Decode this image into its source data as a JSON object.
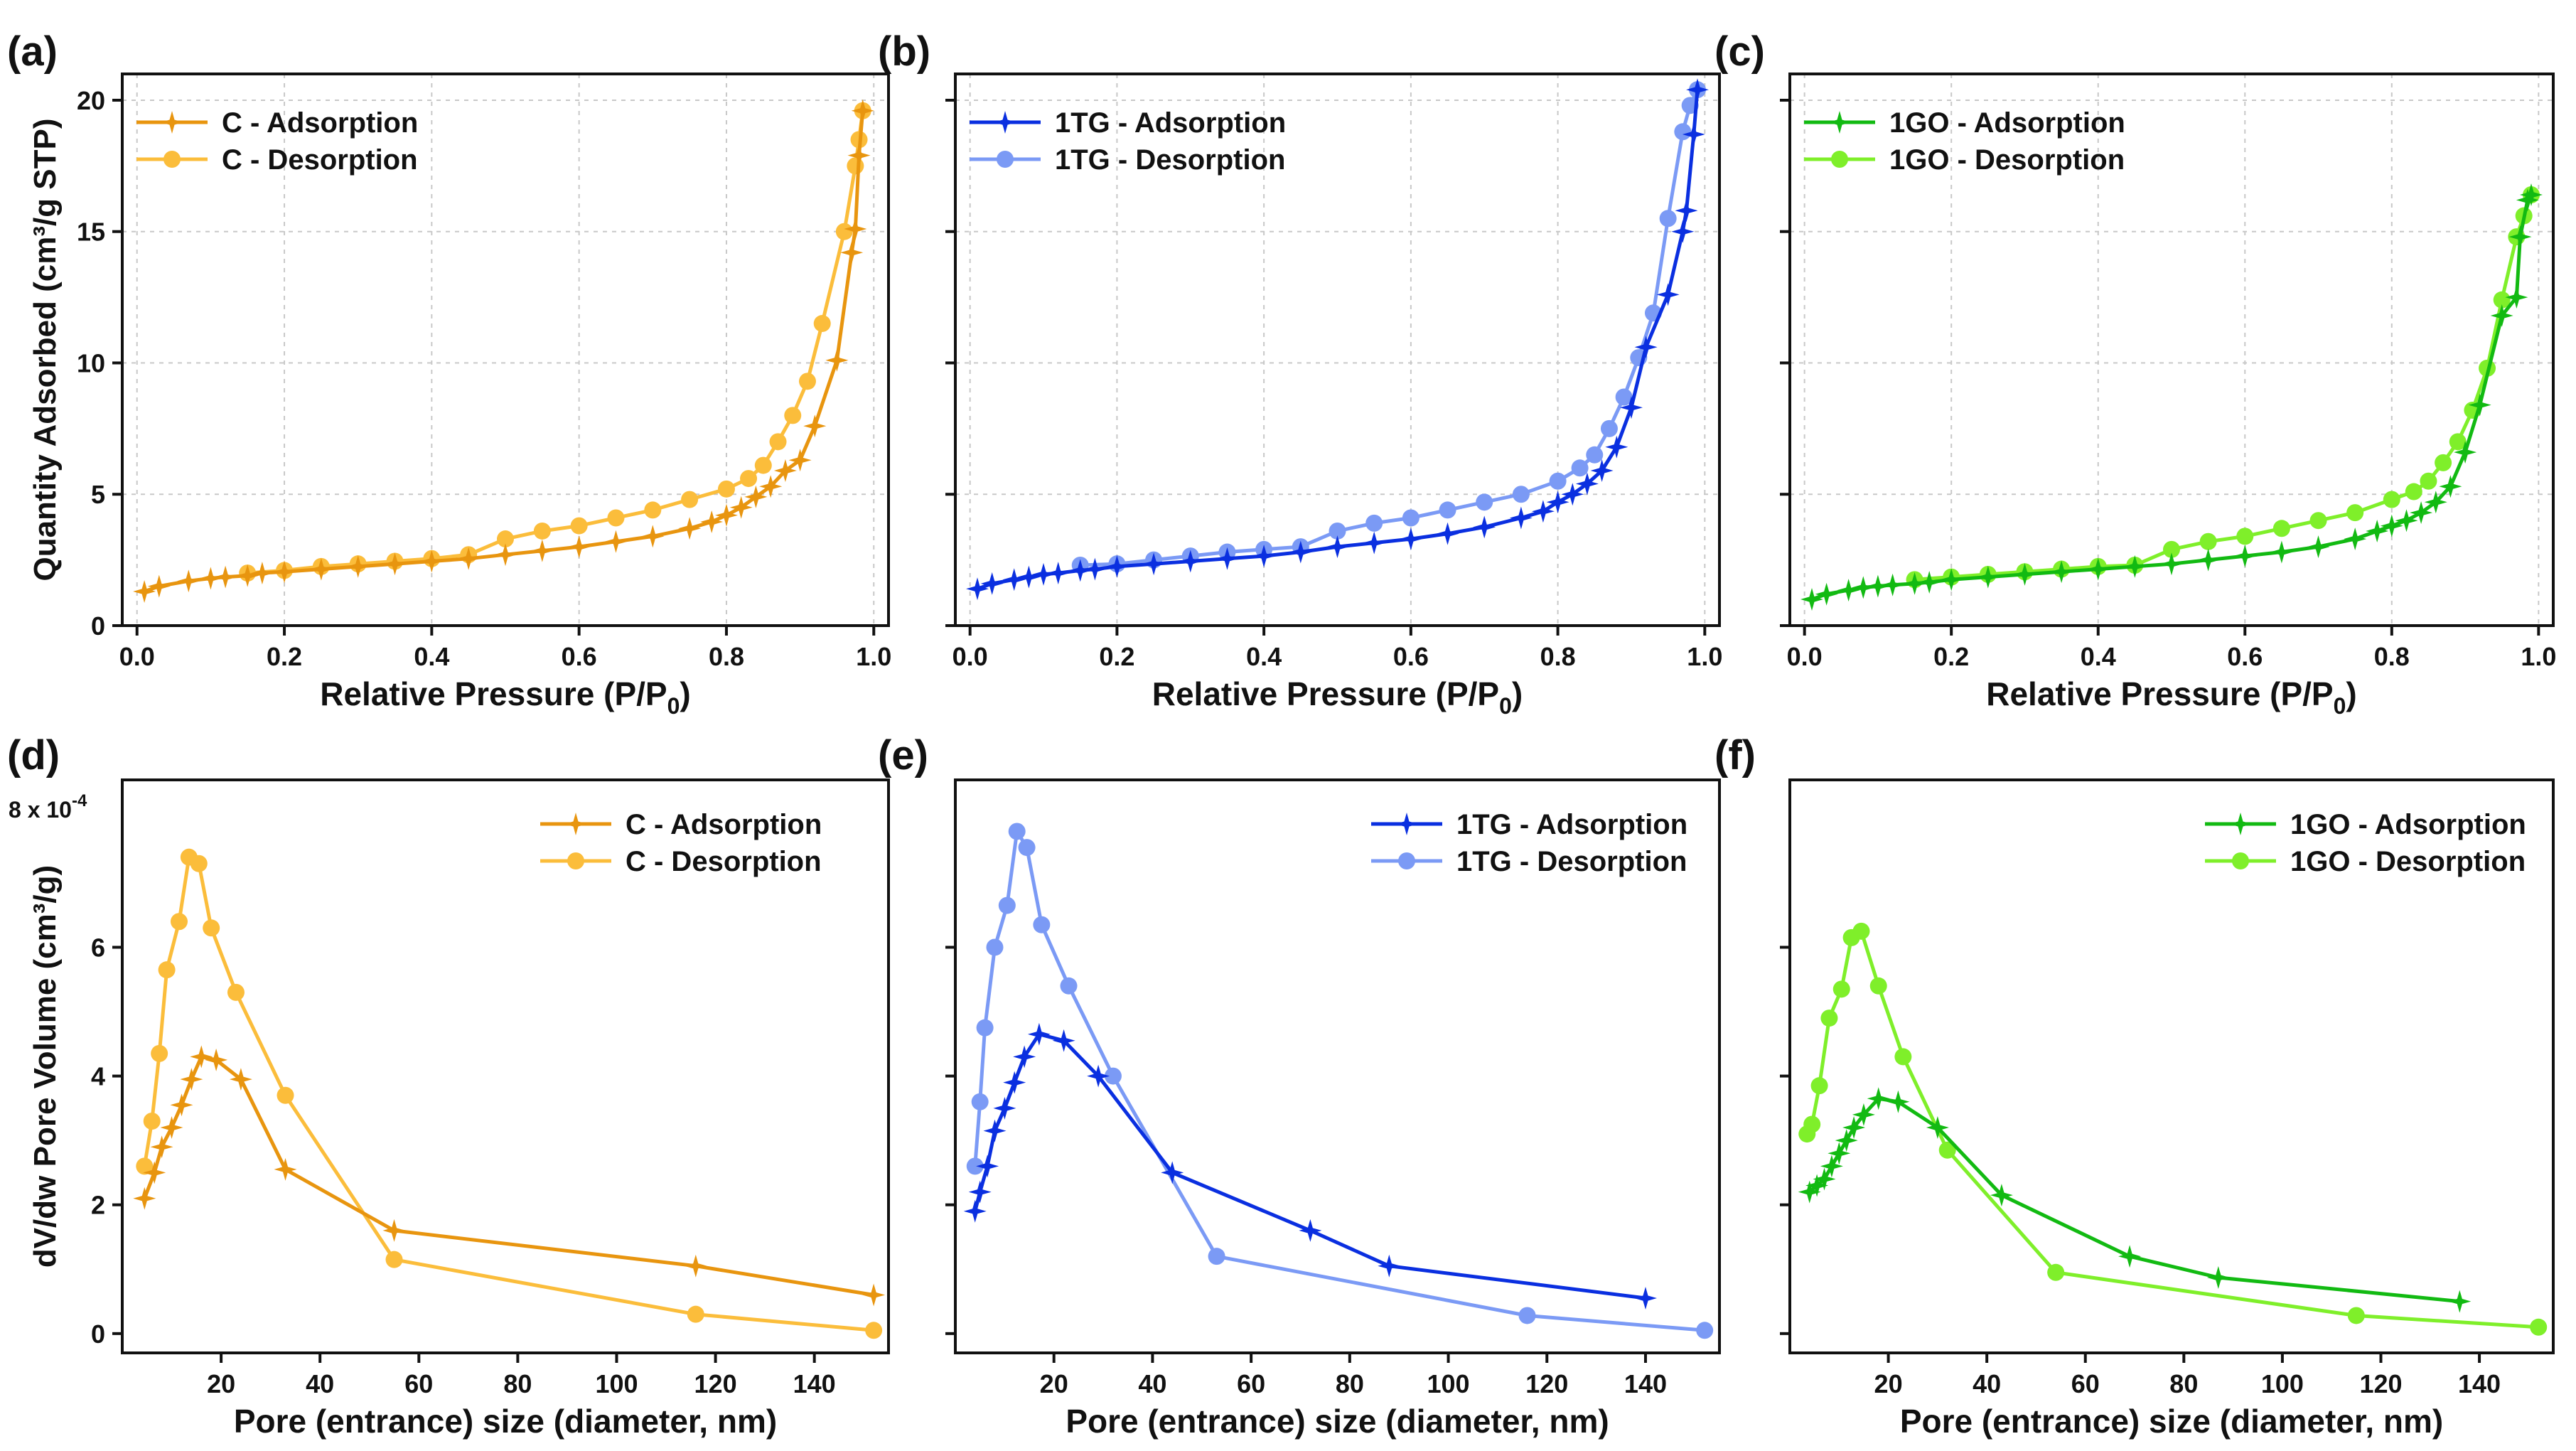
{
  "colors": {
    "C": {
      "ads": "#E8950F",
      "des": "#FBBD3B"
    },
    "1TG": {
      "ads": "#0A2FE0",
      "des": "#7B9AF5"
    },
    "1GO": {
      "ads": "#12BA12",
      "des": "#7FEF2A"
    }
  },
  "chart_data": [
    {
      "id": "a",
      "type": "line",
      "panel_label": "(a)",
      "xlabel_main": "Relative Pressure (P/P",
      "xlabel_sub": "0",
      "xlabel_end": ")",
      "ylabel": "Quantity Adsorbed (cm³/g STP)",
      "xlim": [
        -0.02,
        1.02
      ],
      "ylim": [
        0,
        21
      ],
      "xticks": [
        0.0,
        0.2,
        0.4,
        0.6,
        0.8,
        1.0
      ],
      "xtick_labels": [
        "0.0",
        "0.2",
        "0.4",
        "0.6",
        "0.8",
        "1.0"
      ],
      "yticks": [
        0,
        5,
        10,
        15,
        20
      ],
      "ytick_labels": [
        "0",
        "5",
        "10",
        "15",
        "20"
      ],
      "grid": true,
      "legend_position": "top-left",
      "series": [
        {
          "name": "C - Adsorption",
          "marker": "star",
          "color_key": "C",
          "variant": "ads",
          "x": [
            0.01,
            0.03,
            0.07,
            0.1,
            0.12,
            0.15,
            0.17,
            0.2,
            0.25,
            0.3,
            0.35,
            0.4,
            0.45,
            0.5,
            0.55,
            0.6,
            0.65,
            0.7,
            0.75,
            0.78,
            0.8,
            0.82,
            0.84,
            0.86,
            0.88,
            0.9,
            0.92,
            0.95,
            0.97,
            0.975,
            0.98,
            0.985
          ],
          "y": [
            1.3,
            1.5,
            1.7,
            1.8,
            1.85,
            1.9,
            2.0,
            2.05,
            2.15,
            2.25,
            2.35,
            2.45,
            2.55,
            2.7,
            2.85,
            3.0,
            3.2,
            3.4,
            3.7,
            3.95,
            4.2,
            4.5,
            4.9,
            5.3,
            5.9,
            6.3,
            7.6,
            10.1,
            14.2,
            15.1,
            17.9,
            19.6
          ]
        },
        {
          "name": "C - Desorption",
          "marker": "circle",
          "color_key": "C",
          "variant": "des",
          "x": [
            0.985,
            0.98,
            0.975,
            0.96,
            0.93,
            0.91,
            0.89,
            0.87,
            0.85,
            0.83,
            0.8,
            0.75,
            0.7,
            0.65,
            0.6,
            0.55,
            0.5,
            0.45,
            0.4,
            0.35,
            0.3,
            0.25,
            0.2,
            0.15
          ],
          "y": [
            19.6,
            18.5,
            17.5,
            15.0,
            11.5,
            9.3,
            8.0,
            7.0,
            6.1,
            5.6,
            5.2,
            4.8,
            4.4,
            4.1,
            3.8,
            3.6,
            3.3,
            2.7,
            2.55,
            2.45,
            2.35,
            2.25,
            2.1,
            2.0
          ]
        }
      ]
    },
    {
      "id": "b",
      "type": "line",
      "panel_label": "(b)",
      "xlabel_main": "Relative Pressure (P/P",
      "xlabel_sub": "0",
      "xlabel_end": ")",
      "ylabel": "",
      "xlim": [
        -0.02,
        1.02
      ],
      "ylim": [
        0,
        21
      ],
      "xticks": [
        0.0,
        0.2,
        0.4,
        0.6,
        0.8,
        1.0
      ],
      "xtick_labels": [
        "0.0",
        "0.2",
        "0.4",
        "0.6",
        "0.8",
        "1.0"
      ],
      "yticks": [
        0,
        5,
        10,
        15,
        20
      ],
      "ytick_labels": [],
      "grid": true,
      "legend_position": "top-left",
      "series": [
        {
          "name": "1TG - Adsorption",
          "marker": "star",
          "color_key": "1TG",
          "variant": "ads",
          "x": [
            0.01,
            0.03,
            0.06,
            0.08,
            0.1,
            0.12,
            0.15,
            0.17,
            0.2,
            0.25,
            0.3,
            0.35,
            0.4,
            0.45,
            0.5,
            0.55,
            0.6,
            0.65,
            0.7,
            0.75,
            0.78,
            0.8,
            0.82,
            0.84,
            0.86,
            0.88,
            0.9,
            0.92,
            0.95,
            0.97,
            0.975,
            0.985,
            0.99
          ],
          "y": [
            1.4,
            1.6,
            1.75,
            1.85,
            1.95,
            2.0,
            2.1,
            2.15,
            2.25,
            2.35,
            2.45,
            2.55,
            2.65,
            2.8,
            3.0,
            3.15,
            3.3,
            3.5,
            3.75,
            4.1,
            4.35,
            4.7,
            5.0,
            5.4,
            5.9,
            6.8,
            8.3,
            10.6,
            12.6,
            15.0,
            15.8,
            18.7,
            20.4
          ]
        },
        {
          "name": "1TG - Desorption",
          "marker": "circle",
          "color_key": "1TG",
          "variant": "des",
          "x": [
            0.99,
            0.98,
            0.97,
            0.95,
            0.93,
            0.91,
            0.89,
            0.87,
            0.85,
            0.83,
            0.8,
            0.75,
            0.7,
            0.65,
            0.6,
            0.55,
            0.5,
            0.45,
            0.4,
            0.35,
            0.3,
            0.25,
            0.2,
            0.15
          ],
          "y": [
            20.4,
            19.8,
            18.8,
            15.5,
            11.9,
            10.2,
            8.7,
            7.5,
            6.5,
            6.0,
            5.5,
            5.0,
            4.7,
            4.4,
            4.1,
            3.9,
            3.6,
            3.0,
            2.9,
            2.8,
            2.65,
            2.5,
            2.35,
            2.3
          ]
        }
      ]
    },
    {
      "id": "c",
      "type": "line",
      "panel_label": "(c)",
      "xlabel_main": "Relative Pressure (P/P",
      "xlabel_sub": "0",
      "xlabel_end": ")",
      "ylabel": "",
      "xlim": [
        -0.02,
        1.02
      ],
      "ylim": [
        0,
        21
      ],
      "xticks": [
        0.0,
        0.2,
        0.4,
        0.6,
        0.8,
        1.0
      ],
      "xtick_labels": [
        "0.0",
        "0.2",
        "0.4",
        "0.6",
        "0.8",
        "1.0"
      ],
      "yticks": [
        0,
        5,
        10,
        15,
        20
      ],
      "ytick_labels": [],
      "grid": true,
      "legend_position": "top-left",
      "series": [
        {
          "name": "1GO - Adsorption",
          "marker": "star",
          "color_key": "1GO",
          "variant": "ads",
          "x": [
            0.01,
            0.03,
            0.06,
            0.08,
            0.1,
            0.12,
            0.15,
            0.17,
            0.2,
            0.25,
            0.3,
            0.35,
            0.4,
            0.45,
            0.5,
            0.55,
            0.6,
            0.65,
            0.7,
            0.75,
            0.78,
            0.8,
            0.82,
            0.84,
            0.86,
            0.88,
            0.9,
            0.92,
            0.95,
            0.97,
            0.975,
            0.985,
            0.99
          ],
          "y": [
            1.0,
            1.2,
            1.35,
            1.45,
            1.5,
            1.55,
            1.6,
            1.65,
            1.75,
            1.85,
            1.95,
            2.05,
            2.15,
            2.25,
            2.35,
            2.5,
            2.65,
            2.8,
            3.0,
            3.3,
            3.6,
            3.8,
            4.0,
            4.3,
            4.7,
            5.3,
            6.6,
            8.4,
            11.8,
            12.5,
            14.8,
            16.2,
            16.4
          ]
        },
        {
          "name": "1GO - Desorption",
          "marker": "circle",
          "color_key": "1GO",
          "variant": "des",
          "x": [
            0.99,
            0.98,
            0.97,
            0.95,
            0.93,
            0.91,
            0.89,
            0.87,
            0.85,
            0.83,
            0.8,
            0.75,
            0.7,
            0.65,
            0.6,
            0.55,
            0.5,
            0.45,
            0.4,
            0.35,
            0.3,
            0.25,
            0.2,
            0.15
          ],
          "y": [
            16.4,
            15.6,
            14.8,
            12.4,
            9.8,
            8.2,
            7.0,
            6.2,
            5.5,
            5.1,
            4.8,
            4.3,
            4.0,
            3.7,
            3.4,
            3.2,
            2.9,
            2.3,
            2.25,
            2.15,
            2.05,
            1.95,
            1.85,
            1.75
          ]
        }
      ]
    },
    {
      "id": "d",
      "type": "line",
      "panel_label": "(d)",
      "xlabel_main": "Pore (entrance) size (diameter, nm)",
      "xlabel_sub": "",
      "xlabel_end": "",
      "ylabel": "dV/dw Pore Volume (cm³/g)",
      "y_multiplier_text": "8 x 10",
      "y_multiplier_exp": "-4",
      "xlim": [
        0,
        155
      ],
      "ylim": [
        -0.3,
        8.6
      ],
      "xticks": [
        20,
        40,
        60,
        80,
        100,
        120,
        140
      ],
      "xtick_labels": [
        "20",
        "40",
        "60",
        "80",
        "100",
        "120",
        "140"
      ],
      "yticks": [
        0,
        2,
        4,
        6
      ],
      "ytick_labels": [
        "0",
        "2",
        "4",
        "6"
      ],
      "grid": false,
      "legend_position": "top-right",
      "series": [
        {
          "name": "C - Adsorption",
          "marker": "star",
          "color_key": "C",
          "variant": "ads",
          "x": [
            4.5,
            6.5,
            8,
            10,
            12,
            14,
            16,
            19,
            24,
            33,
            55,
            116,
            152
          ],
          "y": [
            2.1,
            2.5,
            2.9,
            3.2,
            3.55,
            3.95,
            4.3,
            4.25,
            3.95,
            2.55,
            1.6,
            1.05,
            0.6
          ]
        },
        {
          "name": "C - Desorption",
          "marker": "circle",
          "color_key": "C",
          "variant": "des",
          "x": [
            4.5,
            6,
            7.5,
            9,
            11.5,
            13.5,
            15.5,
            18,
            23,
            33,
            55,
            116,
            152
          ],
          "y": [
            2.6,
            3.3,
            4.35,
            5.65,
            6.4,
            7.4,
            7.3,
            6.3,
            5.3,
            3.7,
            1.15,
            0.3,
            0.05
          ]
        }
      ]
    },
    {
      "id": "e",
      "type": "line",
      "panel_label": "(e)",
      "xlabel_main": "Pore (entrance) size (diameter, nm)",
      "xlabel_sub": "",
      "xlabel_end": "",
      "ylabel": "",
      "xlim": [
        0,
        155
      ],
      "ylim": [
        -0.3,
        8.6
      ],
      "xticks": [
        20,
        40,
        60,
        80,
        100,
        120,
        140
      ],
      "xtick_labels": [
        "20",
        "40",
        "60",
        "80",
        "100",
        "120",
        "140"
      ],
      "yticks": [
        0,
        2,
        4,
        6
      ],
      "ytick_labels": [],
      "grid": false,
      "legend_position": "top-right",
      "series": [
        {
          "name": "1TG - Adsorption",
          "marker": "star",
          "color_key": "1TG",
          "variant": "ads",
          "x": [
            4,
            5,
            6.5,
            8,
            10,
            12,
            14,
            17,
            22,
            29,
            44,
            72,
            88,
            140
          ],
          "y": [
            1.9,
            2.2,
            2.6,
            3.15,
            3.5,
            3.9,
            4.3,
            4.65,
            4.55,
            4.0,
            2.5,
            1.6,
            1.05,
            0.55
          ]
        },
        {
          "name": "1TG - Desorption",
          "marker": "circle",
          "color_key": "1TG",
          "variant": "des",
          "x": [
            4,
            5,
            6,
            8,
            10.5,
            12.5,
            14.5,
            17.5,
            23,
            32,
            53,
            116,
            152
          ],
          "y": [
            2.6,
            3.6,
            4.75,
            6.0,
            6.65,
            7.8,
            7.55,
            6.35,
            5.4,
            4.0,
            1.2,
            0.28,
            0.05
          ]
        }
      ]
    },
    {
      "id": "f",
      "type": "line",
      "panel_label": "(f)",
      "xlabel_main": "Pore (entrance) size (diameter, nm)",
      "xlabel_sub": "",
      "xlabel_end": "",
      "ylabel": "",
      "xlim": [
        0,
        155
      ],
      "ylim": [
        -0.3,
        8.6
      ],
      "xticks": [
        20,
        40,
        60,
        80,
        100,
        120,
        140
      ],
      "xtick_labels": [
        "20",
        "40",
        "60",
        "80",
        "100",
        "120",
        "140"
      ],
      "yticks": [
        0,
        2,
        4,
        6
      ],
      "ytick_labels": [],
      "grid": false,
      "legend_position": "top-right",
      "series": [
        {
          "name": "1GO - Adsorption",
          "marker": "star",
          "color_key": "1GO",
          "variant": "ads",
          "x": [
            4,
            5.5,
            7,
            8.5,
            10,
            11.5,
            13,
            15,
            18,
            22,
            30,
            43,
            69,
            87,
            136
          ],
          "y": [
            2.2,
            2.3,
            2.4,
            2.6,
            2.8,
            3.0,
            3.2,
            3.4,
            3.65,
            3.6,
            3.2,
            2.15,
            1.2,
            0.87,
            0.5
          ]
        },
        {
          "name": "1GO - Desorption",
          "marker": "circle",
          "color_key": "1GO",
          "variant": "des",
          "x": [
            3.5,
            4.5,
            6,
            8,
            10.5,
            12.5,
            14.5,
            18,
            23,
            32,
            54,
            115,
            152
          ],
          "y": [
            3.1,
            3.25,
            3.85,
            4.9,
            5.35,
            6.15,
            6.25,
            5.4,
            4.3,
            2.85,
            0.95,
            0.28,
            0.1
          ]
        }
      ]
    }
  ]
}
